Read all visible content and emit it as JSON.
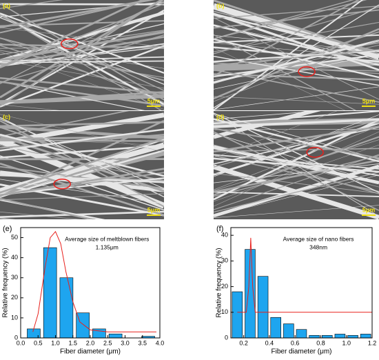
{
  "images": [
    {
      "label": "(a)",
      "scale": "5μm"
    },
    {
      "label": "(b)",
      "scale": "5μm"
    },
    {
      "label": "(c)",
      "scale": "5μm"
    },
    {
      "label": "(d)",
      "scale": "5μm"
    }
  ],
  "chart_data": [
    {
      "type": "histogram",
      "panel_label": "(e)",
      "annotation": [
        "Average size of meltblown fibers",
        "1.135μm"
      ],
      "x_label": "Fiber diameter (μm)",
      "y_label": "Relative frequency (%)",
      "bins": [
        0.14,
        0.61,
        1.08,
        1.55,
        2.02,
        2.49,
        2.96,
        3.43,
        3.9
      ],
      "values": [
        4.5,
        45,
        30,
        12.5,
        4.5,
        2,
        0,
        0.8
      ],
      "color": "#1ea5ef",
      "fit": {
        "color": "#e8201c",
        "x": [
          0.35,
          0.5,
          0.7,
          0.85,
          1.0,
          1.15,
          1.3,
          1.5,
          1.7,
          2.0,
          2.5,
          3.0,
          3.9
        ],
        "values": [
          3,
          12,
          35,
          50,
          53,
          47,
          33,
          18,
          8,
          4,
          3,
          3,
          3
        ]
      },
      "xlim": [
        0,
        4.0
      ],
      "xticks": [
        {
          "value": 0,
          "label": "0.0"
        },
        0.5,
        {
          "value": 1,
          "label": "1.0"
        },
        1.5,
        {
          "value": 2,
          "label": "2.0"
        },
        2.5,
        {
          "value": 3,
          "label": "3.0"
        },
        3.5,
        {
          "value": 4,
          "label": "4.0"
        }
      ],
      "ylim": [
        0,
        55
      ],
      "yticks": [
        0,
        10,
        20,
        30,
        40,
        50
      ]
    },
    {
      "type": "histogram",
      "panel_label": "(f)",
      "annotation": [
        "Average size of nano fibers",
        "348nm"
      ],
      "x_label": "Fiber diameter (μm)",
      "y_label": "Relative frequency (%)",
      "bins": [
        0.1,
        0.2,
        0.3,
        0.4,
        0.5,
        0.6,
        0.7,
        0.8,
        0.9,
        1.0,
        1.1,
        1.2
      ],
      "values": [
        18,
        34.5,
        24,
        8,
        5.5,
        3.3,
        1,
        1,
        1.5,
        1,
        1.5
      ],
      "color": "#1ea5ef",
      "fit": {
        "color": "#e8201c",
        "x": [
          0.15,
          0.22,
          0.24,
          0.255,
          0.27,
          0.29,
          1.2
        ],
        "values": [
          10,
          10,
          20,
          39,
          20,
          10,
          10
        ]
      },
      "xlim": [
        0.1,
        1.2
      ],
      "xticks": [
        0.2,
        0.4,
        0.6,
        0.8,
        {
          "value": 1,
          "label": "1.0"
        },
        1.2
      ],
      "ylim": [
        0,
        43
      ],
      "yticks": [
        0,
        10,
        20,
        30,
        40
      ]
    }
  ]
}
